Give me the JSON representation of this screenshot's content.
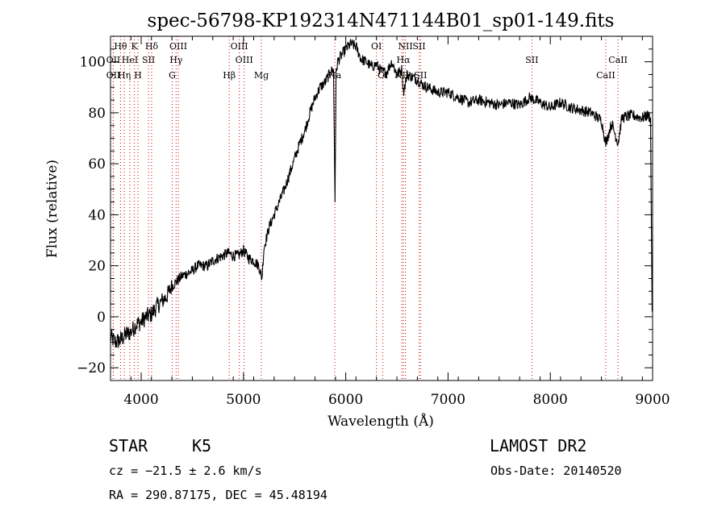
{
  "chart_data": {
    "type": "line",
    "title": "spec-56798-KP192314N471144B01_sp01-149.fits",
    "xlabel": "Wavelength (Å)",
    "ylabel": "Flux (relative)",
    "xlim": [
      3700,
      9000
    ],
    "ylim": [
      -25,
      110
    ],
    "xticks": [
      "4000",
      "5000",
      "6000",
      "7000",
      "8000",
      "9000"
    ],
    "yticks": [
      "-20",
      "0",
      "20",
      "40",
      "60",
      "80",
      "100"
    ],
    "grid": false,
    "series": [
      {
        "x": [
          3700,
          3750,
          3800,
          3850,
          3900,
          3950,
          4000,
          4050,
          4100,
          4150,
          4200,
          4250,
          4300,
          4350,
          4400,
          4450,
          4500,
          4550,
          4600,
          4650,
          4700,
          4750,
          4800,
          4850,
          4900,
          4950,
          5000,
          5050,
          5100,
          5150,
          5180,
          5200,
          5250,
          5300,
          5350,
          5400,
          5450,
          5500,
          5550,
          5600,
          5650,
          5700,
          5750,
          5800,
          5850,
          5880,
          5895,
          5905,
          5920,
          5950,
          6000,
          6050,
          6100,
          6150,
          6200,
          6250,
          6300,
          6350,
          6400,
          6450,
          6500,
          6550,
          6563,
          6600,
          6650,
          6700,
          6750,
          6800,
          6850,
          6900,
          6950,
          7000,
          7100,
          7200,
          7300,
          7400,
          7500,
          7600,
          7700,
          7800,
          7850,
          7900,
          8000,
          8100,
          8200,
          8300,
          8400,
          8500,
          8542,
          8600,
          8662,
          8700,
          8800,
          8900,
          8950,
          8980,
          8995
        ],
        "y": [
          -8,
          -10,
          -9,
          -7,
          -6,
          -3,
          -2,
          0,
          1,
          4,
          6,
          8,
          12,
          14,
          16,
          17,
          18,
          20,
          20,
          20,
          22,
          23,
          24,
          25,
          24,
          24,
          26,
          23,
          22,
          20,
          15,
          27,
          35,
          40,
          45,
          50,
          56,
          62,
          68,
          73,
          80,
          86,
          90,
          92,
          96,
          97,
          45,
          95,
          100,
          102,
          105,
          107,
          106,
          101,
          100,
          98,
          99,
          96,
          96,
          100,
          95,
          97,
          88,
          95,
          94,
          93,
          91,
          90,
          89,
          88,
          88,
          88,
          86,
          84,
          85,
          84,
          83,
          84,
          83,
          86,
          85,
          84,
          82,
          84,
          82,
          81,
          80,
          77,
          68,
          76,
          68,
          78,
          79,
          78,
          79,
          78,
          2
        ]
      }
    ],
    "line_markers": [
      {
        "label": "Hθ",
        "x": 3798,
        "row": 1
      },
      {
        "label": "K",
        "x": 3934,
        "row": 1
      },
      {
        "label": "Hδ",
        "x": 4102,
        "row": 1
      },
      {
        "label": "OIII",
        "x": 4363,
        "row": 1
      },
      {
        "label": "OIII",
        "x": 4959,
        "row": 1
      },
      {
        "label": "OI",
        "x": 6300,
        "row": 1
      },
      {
        "label": "NII",
        "x": 6583,
        "row": 1
      },
      {
        "label": "SII",
        "x": 6717,
        "row": 1
      },
      {
        "label": "OII",
        "x": 3727,
        "row": 2
      },
      {
        "label": "HeI",
        "x": 3889,
        "row": 2
      },
      {
        "label": "SII",
        "x": 4072,
        "row": 2
      },
      {
        "label": "Hγ",
        "x": 4341,
        "row": 2
      },
      {
        "label": "OIII",
        "x": 5007,
        "row": 2
      },
      {
        "label": "Hα",
        "x": 6563,
        "row": 2
      },
      {
        "label": "SII",
        "x": 7820,
        "row": 2
      },
      {
        "label": "CaII",
        "x": 8662,
        "row": 2
      },
      {
        "label": "OII",
        "x": 3727,
        "row": 3
      },
      {
        "label": "Hη",
        "x": 3835,
        "row": 3
      },
      {
        "label": "H",
        "x": 3969,
        "row": 3
      },
      {
        "label": "G",
        "x": 4304,
        "row": 3
      },
      {
        "label": "Hβ",
        "x": 4861,
        "row": 3
      },
      {
        "label": "Mg",
        "x": 5175,
        "row": 3
      },
      {
        "label": "Na",
        "x": 5893,
        "row": 3
      },
      {
        "label": "OI",
        "x": 6363,
        "row": 3
      },
      {
        "label": "NII",
        "x": 6548,
        "row": 3
      },
      {
        "label": "SII",
        "x": 6731,
        "row": 3
      },
      {
        "label": "CaII",
        "x": 8542,
        "row": 3
      }
    ],
    "line_color": "#000000",
    "marker_color": "#cc0000"
  },
  "info": {
    "object_class": "STAR",
    "subclass": "K5",
    "survey": "LAMOST DR2",
    "cz": "cz = −21.5 ± 2.6 km/s",
    "obs_date": "Obs-Date: 20140520",
    "coords": "RA = 290.87175, DEC =  45.48194"
  }
}
